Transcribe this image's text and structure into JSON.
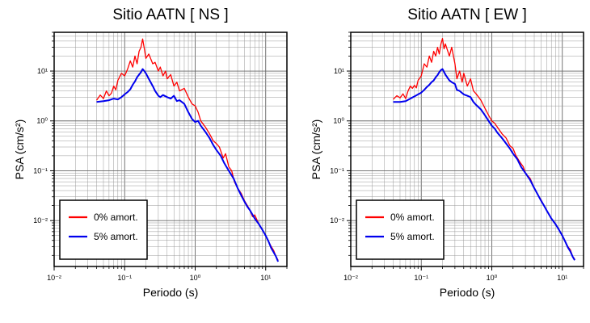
{
  "chart_data": [
    {
      "type": "line",
      "title": "Sitio AATN [ NS ]",
      "xlabel": "Periodo (s)",
      "ylabel": "PSA (cm/s²)",
      "xscale": "log",
      "yscale": "log",
      "xlim": [
        0.01,
        20
      ],
      "ylim": [
        0.0012,
        60
      ],
      "xticks": [
        "10⁻²",
        "10⁻¹",
        "10⁰",
        "10¹"
      ],
      "yticks": [
        "10⁻²",
        "10⁻¹",
        "10⁰",
        "10¹"
      ],
      "grid": true,
      "legend": "bottom-left",
      "series": [
        {
          "name": "0% amort.",
          "color": "#ff0000",
          "points": [
            [
              0.04,
              2.6
            ],
            [
              0.045,
              3.3
            ],
            [
              0.05,
              2.8
            ],
            [
              0.055,
              4.0
            ],
            [
              0.06,
              3.2
            ],
            [
              0.065,
              3.6
            ],
            [
              0.07,
              5.0
            ],
            [
              0.075,
              4.2
            ],
            [
              0.08,
              6.5
            ],
            [
              0.09,
              9.0
            ],
            [
              0.1,
              8.0
            ],
            [
              0.11,
              11.0
            ],
            [
              0.12,
              16.0
            ],
            [
              0.13,
              12.0
            ],
            [
              0.14,
              20.0
            ],
            [
              0.15,
              14.0
            ],
            [
              0.16,
              25.0
            ],
            [
              0.17,
              30.0
            ],
            [
              0.18,
              44.0
            ],
            [
              0.19,
              28.0
            ],
            [
              0.2,
              18.0
            ],
            [
              0.22,
              22.0
            ],
            [
              0.25,
              14.0
            ],
            [
              0.27,
              15.0
            ],
            [
              0.3,
              10.0
            ],
            [
              0.32,
              12.0
            ],
            [
              0.35,
              8.0
            ],
            [
              0.38,
              10.0
            ],
            [
              0.4,
              7.0
            ],
            [
              0.45,
              8.5
            ],
            [
              0.5,
              5.0
            ],
            [
              0.55,
              6.0
            ],
            [
              0.6,
              4.0
            ],
            [
              0.7,
              4.5
            ],
            [
              0.8,
              3.0
            ],
            [
              0.9,
              2.2
            ],
            [
              1.0,
              2.0
            ],
            [
              1.1,
              1.5
            ],
            [
              1.2,
              1.0
            ],
            [
              1.4,
              0.75
            ],
            [
              1.6,
              0.55
            ],
            [
              1.8,
              0.4
            ],
            [
              2.0,
              0.35
            ],
            [
              2.2,
              0.3
            ],
            [
              2.5,
              0.18
            ],
            [
              2.7,
              0.22
            ],
            [
              3.0,
              0.12
            ],
            [
              3.3,
              0.1
            ],
            [
              3.6,
              0.06
            ],
            [
              4.0,
              0.045
            ],
            [
              4.5,
              0.035
            ],
            [
              5.0,
              0.025
            ],
            [
              5.5,
              0.02
            ],
            [
              6.0,
              0.016
            ],
            [
              6.5,
              0.012
            ],
            [
              7.0,
              0.013
            ],
            [
              8.0,
              0.0085
            ],
            [
              9.0,
              0.0065
            ],
            [
              10.0,
              0.005
            ],
            [
              11.0,
              0.0038
            ],
            [
              12.0,
              0.003
            ],
            [
              13.0,
              0.0025
            ],
            [
              14.0,
              0.0019
            ],
            [
              15.0,
              0.0016
            ]
          ]
        },
        {
          "name": "5% amort.",
          "color": "#0000ee",
          "points": [
            [
              0.04,
              2.4
            ],
            [
              0.05,
              2.5
            ],
            [
              0.06,
              2.6
            ],
            [
              0.07,
              2.8
            ],
            [
              0.08,
              2.7
            ],
            [
              0.09,
              3.0
            ],
            [
              0.1,
              3.4
            ],
            [
              0.11,
              3.8
            ],
            [
              0.12,
              4.3
            ],
            [
              0.13,
              5.3
            ],
            [
              0.14,
              6.2
            ],
            [
              0.15,
              7.5
            ],
            [
              0.16,
              8.5
            ],
            [
              0.17,
              9.5
            ],
            [
              0.18,
              11.0
            ],
            [
              0.19,
              10.0
            ],
            [
              0.2,
              9.0
            ],
            [
              0.22,
              7.0
            ],
            [
              0.25,
              5.0
            ],
            [
              0.27,
              4.0
            ],
            [
              0.3,
              3.2
            ],
            [
              0.32,
              3.0
            ],
            [
              0.35,
              3.3
            ],
            [
              0.4,
              3.0
            ],
            [
              0.45,
              2.8
            ],
            [
              0.5,
              3.2
            ],
            [
              0.55,
              2.5
            ],
            [
              0.6,
              2.6
            ],
            [
              0.7,
              2.2
            ],
            [
              0.8,
              1.5
            ],
            [
              0.9,
              1.1
            ],
            [
              1.0,
              0.95
            ],
            [
              1.1,
              1.0
            ],
            [
              1.2,
              0.8
            ],
            [
              1.4,
              0.6
            ],
            [
              1.6,
              0.45
            ],
            [
              1.8,
              0.33
            ],
            [
              2.0,
              0.26
            ],
            [
              2.3,
              0.2
            ],
            [
              2.6,
              0.14
            ],
            [
              3.0,
              0.1
            ],
            [
              3.5,
              0.07
            ],
            [
              4.0,
              0.045
            ],
            [
              4.5,
              0.032
            ],
            [
              5.0,
              0.024
            ],
            [
              5.5,
              0.019
            ],
            [
              6.0,
              0.016
            ],
            [
              7.0,
              0.011
            ],
            [
              8.0,
              0.0085
            ],
            [
              9.0,
              0.0065
            ],
            [
              10.0,
              0.005
            ],
            [
              11.0,
              0.0038
            ],
            [
              12.0,
              0.0028
            ],
            [
              13.0,
              0.0023
            ],
            [
              14.0,
              0.0019
            ],
            [
              15.0,
              0.0015
            ]
          ]
        }
      ]
    },
    {
      "type": "line",
      "title": "Sitio AATN [ EW ]",
      "xlabel": "Periodo (s)",
      "ylabel": "PSA (cm/s²)",
      "xscale": "log",
      "yscale": "log",
      "xlim": [
        0.01,
        20
      ],
      "ylim": [
        0.0012,
        60
      ],
      "xticks": [
        "10⁻²",
        "10⁻¹",
        "10⁰",
        "10¹"
      ],
      "yticks": [
        "10⁻²",
        "10⁻¹",
        "10⁰",
        "10¹"
      ],
      "grid": true,
      "legend": "bottom-left",
      "series": [
        {
          "name": "0% amort.",
          "color": "#ff0000",
          "points": [
            [
              0.04,
              2.7
            ],
            [
              0.045,
              3.2
            ],
            [
              0.05,
              2.9
            ],
            [
              0.055,
              3.5
            ],
            [
              0.06,
              2.8
            ],
            [
              0.065,
              4.0
            ],
            [
              0.07,
              5.0
            ],
            [
              0.075,
              4.5
            ],
            [
              0.08,
              5.2
            ],
            [
              0.085,
              4.6
            ],
            [
              0.09,
              6.5
            ],
            [
              0.1,
              8.0
            ],
            [
              0.11,
              14.0
            ],
            [
              0.12,
              12.0
            ],
            [
              0.13,
              20.0
            ],
            [
              0.14,
              15.0
            ],
            [
              0.15,
              25.0
            ],
            [
              0.16,
              20.0
            ],
            [
              0.17,
              30.0
            ],
            [
              0.18,
              22.0
            ],
            [
              0.19,
              35.0
            ],
            [
              0.2,
              45.0
            ],
            [
              0.21,
              28.0
            ],
            [
              0.22,
              35.0
            ],
            [
              0.25,
              20.0
            ],
            [
              0.27,
              30.0
            ],
            [
              0.3,
              14.0
            ],
            [
              0.32,
              7.0
            ],
            [
              0.35,
              10.0
            ],
            [
              0.38,
              6.0
            ],
            [
              0.4,
              9.0
            ],
            [
              0.45,
              5.0
            ],
            [
              0.5,
              7.0
            ],
            [
              0.55,
              4.0
            ],
            [
              0.6,
              3.5
            ],
            [
              0.7,
              2.6
            ],
            [
              0.8,
              1.8
            ],
            [
              0.9,
              1.3
            ],
            [
              1.0,
              1.0
            ],
            [
              1.1,
              0.9
            ],
            [
              1.2,
              0.75
            ],
            [
              1.4,
              0.55
            ],
            [
              1.6,
              0.45
            ],
            [
              1.8,
              0.32
            ],
            [
              2.0,
              0.28
            ],
            [
              2.2,
              0.2
            ],
            [
              2.5,
              0.15
            ],
            [
              2.8,
              0.12
            ],
            [
              3.0,
              0.09
            ],
            [
              3.5,
              0.07
            ],
            [
              4.0,
              0.045
            ],
            [
              4.5,
              0.033
            ],
            [
              5.0,
              0.026
            ],
            [
              5.5,
              0.02
            ],
            [
              6.0,
              0.016
            ],
            [
              7.0,
              0.011
            ],
            [
              8.0,
              0.0085
            ],
            [
              9.0,
              0.0065
            ],
            [
              10.0,
              0.005
            ],
            [
              11.0,
              0.0038
            ],
            [
              12.0,
              0.003
            ],
            [
              13.0,
              0.0026
            ],
            [
              14.0,
              0.0019
            ],
            [
              15.0,
              0.0017
            ]
          ]
        },
        {
          "name": "5% amort.",
          "color": "#0000ee",
          "points": [
            [
              0.04,
              2.4
            ],
            [
              0.05,
              2.4
            ],
            [
              0.06,
              2.5
            ],
            [
              0.07,
              2.8
            ],
            [
              0.08,
              3.1
            ],
            [
              0.09,
              3.4
            ],
            [
              0.1,
              3.7
            ],
            [
              0.11,
              4.2
            ],
            [
              0.12,
              4.8
            ],
            [
              0.13,
              5.3
            ],
            [
              0.14,
              6.0
            ],
            [
              0.15,
              6.5
            ],
            [
              0.16,
              7.5
            ],
            [
              0.17,
              8.3
            ],
            [
              0.18,
              9.5
            ],
            [
              0.19,
              10.5
            ],
            [
              0.2,
              11.0
            ],
            [
              0.22,
              8.5
            ],
            [
              0.25,
              6.5
            ],
            [
              0.27,
              6.0
            ],
            [
              0.3,
              5.5
            ],
            [
              0.32,
              4.2
            ],
            [
              0.35,
              4.0
            ],
            [
              0.4,
              3.4
            ],
            [
              0.45,
              3.2
            ],
            [
              0.5,
              3.0
            ],
            [
              0.55,
              2.4
            ],
            [
              0.6,
              2.1
            ],
            [
              0.7,
              1.7
            ],
            [
              0.8,
              1.3
            ],
            [
              0.9,
              1.0
            ],
            [
              1.0,
              0.8
            ],
            [
              1.1,
              0.7
            ],
            [
              1.2,
              0.58
            ],
            [
              1.4,
              0.45
            ],
            [
              1.6,
              0.35
            ],
            [
              1.8,
              0.28
            ],
            [
              2.0,
              0.22
            ],
            [
              2.3,
              0.17
            ],
            [
              2.6,
              0.12
            ],
            [
              3.0,
              0.09
            ],
            [
              3.5,
              0.065
            ],
            [
              4.0,
              0.045
            ],
            [
              4.5,
              0.033
            ],
            [
              5.0,
              0.025
            ],
            [
              5.5,
              0.02
            ],
            [
              6.0,
              0.016
            ],
            [
              7.0,
              0.011
            ],
            [
              8.0,
              0.0085
            ],
            [
              9.0,
              0.0065
            ],
            [
              10.0,
              0.005
            ],
            [
              11.0,
              0.0038
            ],
            [
              12.0,
              0.0029
            ],
            [
              13.0,
              0.0024
            ],
            [
              14.0,
              0.0019
            ],
            [
              15.0,
              0.0016
            ]
          ]
        }
      ]
    }
  ]
}
